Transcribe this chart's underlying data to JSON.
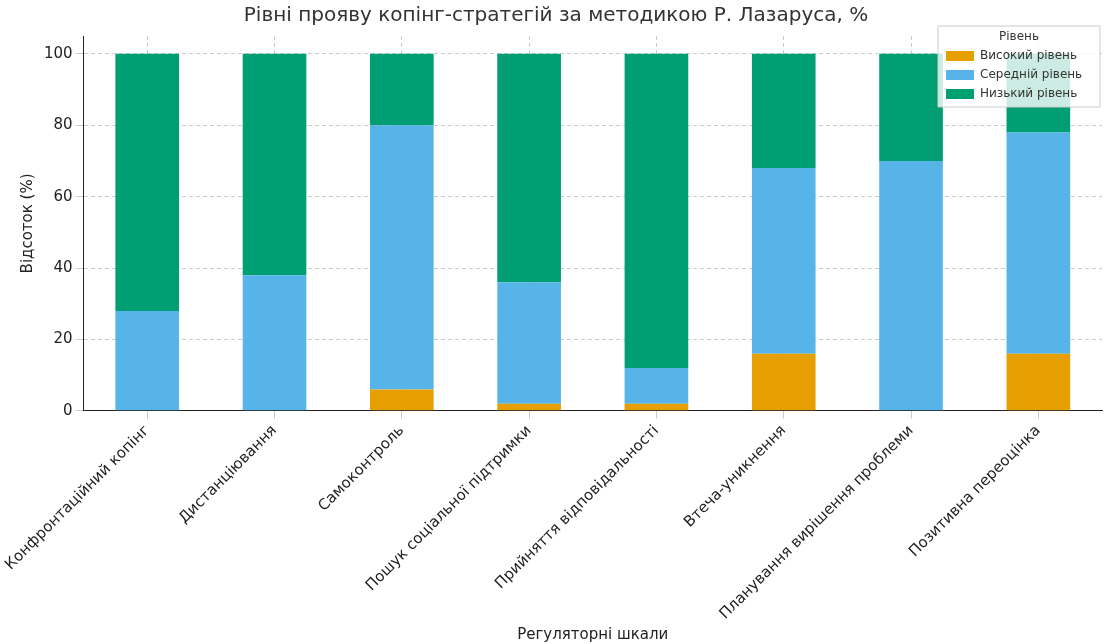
{
  "chart_data": {
    "type": "bar",
    "title": "Рівні прояву копінг-стратегій за методикою Р. Лазаруса, %",
    "xlabel": "Регуляторні шкали",
    "ylabel": "Відсоток (%)",
    "legend_title": "Рівень",
    "categories": [
      "Конфронтаційний копінг",
      "Дистанціювання",
      "Самоконтроль",
      "Пошук соціальної підтримки",
      "Прийняття відповідальності",
      "Втеча-уникнення",
      "Планування вирішення проблеми",
      "Позитивна переоцінка"
    ],
    "stacked": true,
    "series": [
      {
        "name": "Високий рівень",
        "color": "#e69f00",
        "values": [
          0,
          0,
          6,
          2,
          2,
          16,
          0,
          16
        ]
      },
      {
        "name": "Середній рівень",
        "color": "#56b4e9",
        "values": [
          28,
          38,
          74,
          34,
          10,
          52,
          70,
          62
        ]
      },
      {
        "name": "Низький рівень",
        "color": "#009e73",
        "values": [
          72,
          62,
          20,
          64,
          88,
          32,
          30,
          22
        ]
      }
    ],
    "ylim": [
      0,
      105
    ],
    "yticks": [
      0,
      20,
      40,
      60,
      80,
      100
    ],
    "grid": true,
    "legend": "top right"
  }
}
